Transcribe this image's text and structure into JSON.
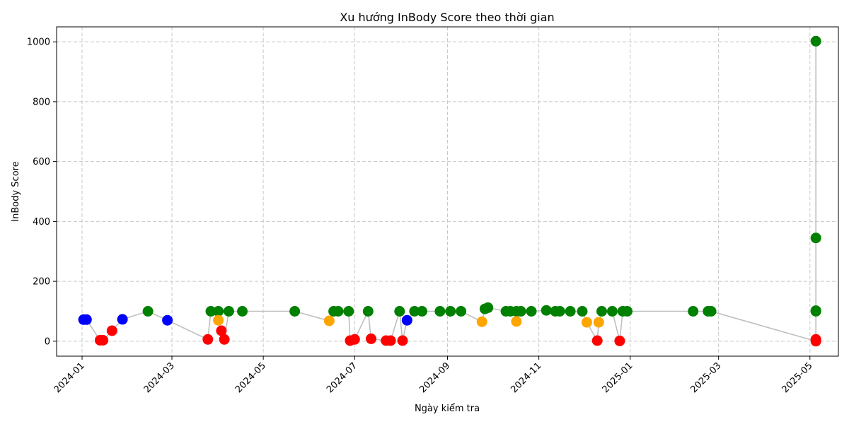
{
  "chart_data": {
    "type": "scatter",
    "title": "Xu hướng InBody Score theo thời gian",
    "xlabel": "Ngày kiểm tra",
    "ylabel": "InBody Score",
    "x_ticks": [
      "2024-01",
      "2024-03",
      "2024-05",
      "2024-07",
      "2024-09",
      "2024-11",
      "2025-01",
      "2025-03",
      "2025-05"
    ],
    "y_ticks": [
      0,
      200,
      400,
      600,
      800,
      1000
    ],
    "xlim": [
      "2023-12-15",
      "2025-05-20"
    ],
    "ylim": [
      -50,
      1050
    ],
    "grid": true,
    "line_color": "#bfbfbf",
    "colors": {
      "blue": "#0000ff",
      "red": "#ff0000",
      "green": "#008000",
      "orange": "#ffa500"
    },
    "points": [
      {
        "x": "2024-01-02",
        "y": 72,
        "c": "blue"
      },
      {
        "x": "2024-01-04",
        "y": 72,
        "c": "blue"
      },
      {
        "x": "2024-01-13",
        "y": 3,
        "c": "red"
      },
      {
        "x": "2024-01-15",
        "y": 3,
        "c": "red"
      },
      {
        "x": "2024-01-21",
        "y": 35,
        "c": "red"
      },
      {
        "x": "2024-01-28",
        "y": 73,
        "c": "blue"
      },
      {
        "x": "2024-02-14",
        "y": 100,
        "c": "green"
      },
      {
        "x": "2024-02-27",
        "y": 70,
        "c": "blue"
      },
      {
        "x": "2024-03-25",
        "y": 6,
        "c": "red"
      },
      {
        "x": "2024-03-27",
        "y": 100,
        "c": "green"
      },
      {
        "x": "2024-04-01",
        "y": 100,
        "c": "green"
      },
      {
        "x": "2024-04-01",
        "y": 70,
        "c": "orange"
      },
      {
        "x": "2024-04-03",
        "y": 35,
        "c": "red"
      },
      {
        "x": "2024-04-05",
        "y": 6,
        "c": "red"
      },
      {
        "x": "2024-04-08",
        "y": 100,
        "c": "green"
      },
      {
        "x": "2024-04-17",
        "y": 100,
        "c": "green"
      },
      {
        "x": "2024-05-22",
        "y": 100,
        "c": "green"
      },
      {
        "x": "2024-06-14",
        "y": 68,
        "c": "orange"
      },
      {
        "x": "2024-06-17",
        "y": 100,
        "c": "green"
      },
      {
        "x": "2024-06-20",
        "y": 100,
        "c": "green"
      },
      {
        "x": "2024-06-27",
        "y": 100,
        "c": "green"
      },
      {
        "x": "2024-06-28",
        "y": 2,
        "c": "red"
      },
      {
        "x": "2024-07-01",
        "y": 6,
        "c": "red"
      },
      {
        "x": "2024-07-10",
        "y": 100,
        "c": "green"
      },
      {
        "x": "2024-07-12",
        "y": 8,
        "c": "red"
      },
      {
        "x": "2024-07-22",
        "y": 2,
        "c": "red"
      },
      {
        "x": "2024-07-25",
        "y": 2,
        "c": "red"
      },
      {
        "x": "2024-07-31",
        "y": 100,
        "c": "green"
      },
      {
        "x": "2024-08-02",
        "y": 2,
        "c": "red"
      },
      {
        "x": "2024-08-05",
        "y": 70,
        "c": "blue"
      },
      {
        "x": "2024-08-10",
        "y": 100,
        "c": "green"
      },
      {
        "x": "2024-08-15",
        "y": 100,
        "c": "green"
      },
      {
        "x": "2024-08-27",
        "y": 100,
        "c": "green"
      },
      {
        "x": "2024-09-03",
        "y": 100,
        "c": "green"
      },
      {
        "x": "2024-09-10",
        "y": 100,
        "c": "green"
      },
      {
        "x": "2024-09-24",
        "y": 65,
        "c": "orange"
      },
      {
        "x": "2024-09-26",
        "y": 108,
        "c": "green"
      },
      {
        "x": "2024-09-28",
        "y": 112,
        "c": "green"
      },
      {
        "x": "2024-10-10",
        "y": 100,
        "c": "green"
      },
      {
        "x": "2024-10-13",
        "y": 100,
        "c": "green"
      },
      {
        "x": "2024-10-17",
        "y": 100,
        "c": "green"
      },
      {
        "x": "2024-10-17",
        "y": 66,
        "c": "orange"
      },
      {
        "x": "2024-10-20",
        "y": 100,
        "c": "green"
      },
      {
        "x": "2024-10-27",
        "y": 100,
        "c": "green"
      },
      {
        "x": "2024-11-06",
        "y": 103,
        "c": "green"
      },
      {
        "x": "2024-11-12",
        "y": 100,
        "c": "green"
      },
      {
        "x": "2024-11-15",
        "y": 100,
        "c": "green"
      },
      {
        "x": "2024-11-22",
        "y": 100,
        "c": "green"
      },
      {
        "x": "2024-11-30",
        "y": 100,
        "c": "green"
      },
      {
        "x": "2024-12-03",
        "y": 63,
        "c": "orange"
      },
      {
        "x": "2024-12-10",
        "y": 2,
        "c": "red"
      },
      {
        "x": "2024-12-11",
        "y": 63,
        "c": "orange"
      },
      {
        "x": "2024-12-13",
        "y": 100,
        "c": "green"
      },
      {
        "x": "2024-12-20",
        "y": 100,
        "c": "green"
      },
      {
        "x": "2024-12-25",
        "y": 1,
        "c": "red"
      },
      {
        "x": "2024-12-27",
        "y": 100,
        "c": "green"
      },
      {
        "x": "2024-12-30",
        "y": 100,
        "c": "green"
      },
      {
        "x": "2025-02-12",
        "y": 100,
        "c": "green"
      },
      {
        "x": "2025-02-22",
        "y": 100,
        "c": "green"
      },
      {
        "x": "2025-02-24",
        "y": 100,
        "c": "green"
      },
      {
        "x": "2025-05-05",
        "y": 0,
        "c": "red"
      },
      {
        "x": "2025-05-05",
        "y": 6,
        "c": "red"
      },
      {
        "x": "2025-05-05",
        "y": 100,
        "c": "green"
      },
      {
        "x": "2025-05-05",
        "y": 102,
        "c": "green"
      },
      {
        "x": "2025-05-05",
        "y": 345,
        "c": "green"
      },
      {
        "x": "2025-05-05",
        "y": 1002,
        "c": "green"
      }
    ]
  }
}
